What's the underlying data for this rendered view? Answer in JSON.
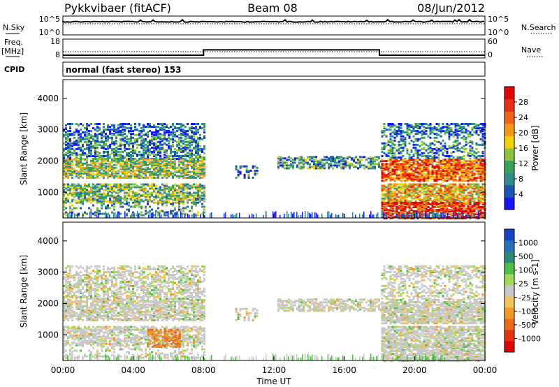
{
  "header": {
    "site": "Pykkvibaer (fitACF)",
    "beam": "Beam 08",
    "date": "08/Jun/2012"
  },
  "strip_labels": {
    "nsky": "N.Sky",
    "nsky_ticks": [
      "10^5",
      "10^0"
    ],
    "nsearch": "N.Search",
    "nsearch_ticks": [
      "10^5",
      "10^0"
    ],
    "freq": "Freq.",
    "freq_unit": "[MHz]",
    "freq_ticks": [
      "18",
      "8"
    ],
    "nave": "Nave",
    "nave_ticks": [
      "60",
      "0"
    ],
    "cpid": "CPID",
    "cpid_text": "normal (fast stereo) 153"
  },
  "colors": {
    "power_scale": [
      "#1414ff",
      "#1f55b4",
      "#2f8f8a",
      "#3aa05a",
      "#8fc33a",
      "#f3d200",
      "#f59a10",
      "#f26314",
      "#ec2c12",
      "#e60000"
    ],
    "velocity_scale": [
      "#1845c8",
      "#2573bb",
      "#2c8a78",
      "#4fbf44",
      "#a3d95a",
      "#c8c8c8",
      "#f2c55a",
      "#f29a24",
      "#ee6a16",
      "#e8320f",
      "#e00000"
    ]
  },
  "chart_data": [
    {
      "type": "line",
      "name": "N.Sky / N.Search",
      "x": [
        "00:00",
        "04:00",
        "08:00",
        "12:00",
        "16:00",
        "20:00",
        "00:00"
      ],
      "ylabel_left": "N.Sky",
      "ylabel_right": "N.Search",
      "scale": "log",
      "ylim": [
        "10^0",
        "10^5"
      ]
    },
    {
      "type": "line",
      "name": "Freq / Nave",
      "xlim_hours": [
        0,
        24
      ],
      "freq_series": {
        "hours": [
          0,
          8.0,
          8.0,
          18.0,
          18.0,
          24
        ],
        "values_mhz": [
          9.5,
          9.5,
          12.3,
          12.3,
          9.5,
          9.5
        ]
      },
      "nave_dotted_level": 20,
      "freq_ylim": [
        8,
        18
      ],
      "nave_ylim": [
        0,
        60
      ]
    },
    {
      "type": "heatmap",
      "panel": "power",
      "ylabel": "Slant Range [km]",
      "yticks": [
        "1000",
        "2000",
        "3000",
        "4000"
      ],
      "ylim": [
        180,
        4600
      ],
      "xlim_hours": [
        0,
        24
      ],
      "colorbar_label": "Power [dB]",
      "colorbar_ticks": [
        "4",
        "8",
        "12",
        "16",
        "20",
        "24",
        "28"
      ],
      "colorbar_range": [
        0,
        30
      ]
    },
    {
      "type": "heatmap",
      "panel": "velocity",
      "ylabel": "Slant Range [km]",
      "yticks": [
        "1000",
        "2000",
        "3000",
        "4000"
      ],
      "ylim": [
        180,
        4600
      ],
      "xlim_hours": [
        0,
        24
      ],
      "xlabel": "Time UT",
      "xticks": [
        "00:00",
        "04:00",
        "08:00",
        "12:00",
        "16:00",
        "20:00",
        "00:00"
      ],
      "colorbar_label": "Velocity [m s-1]",
      "colorbar_ticks": [
        "1000",
        "500",
        "100",
        "25",
        "-25",
        "-100",
        "-500",
        "-1000"
      ]
    }
  ]
}
